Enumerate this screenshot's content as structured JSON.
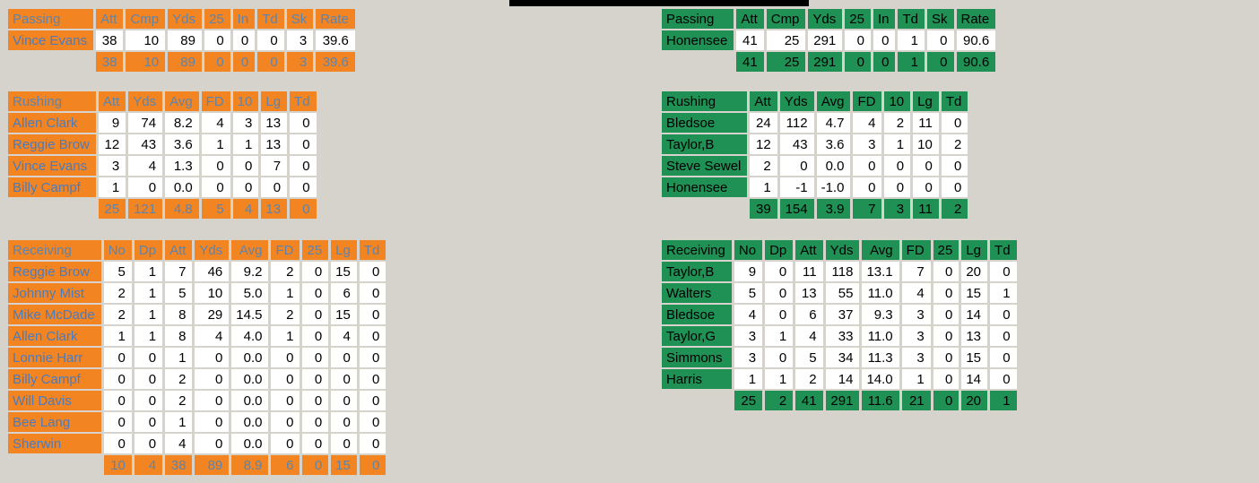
{
  "decor": {
    "top_bar_color": "#000000",
    "page_background": "#D6D3CC"
  },
  "left": {
    "theme": {
      "accent": "#F28422",
      "header_text": "#5E84AD",
      "name_text": "#4A7CBF",
      "total_text": "#5E84AD"
    },
    "passing": {
      "title": "Passing",
      "columns": [
        "Att",
        "Cmp",
        "Yds",
        "25",
        "In",
        "Td",
        "Sk",
        "Rate"
      ],
      "rows": [
        {
          "name": "Vince Evans",
          "values": [
            "38",
            "10",
            "89",
            "0",
            "0",
            "0",
            "3",
            "39.6"
          ]
        }
      ],
      "totals": [
        "38",
        "10",
        "89",
        "0",
        "0",
        "0",
        "3",
        "39.6"
      ]
    },
    "rushing": {
      "title": "Rushing",
      "columns": [
        "Att",
        "Yds",
        "Avg",
        "FD",
        "10",
        "Lg",
        "Td"
      ],
      "rows": [
        {
          "name": "Allen Clark",
          "values": [
            "9",
            "74",
            "8.2",
            "4",
            "3",
            "13",
            "0"
          ]
        },
        {
          "name": "Reggie Brow",
          "values": [
            "12",
            "43",
            "3.6",
            "1",
            "1",
            "13",
            "0"
          ]
        },
        {
          "name": "Vince Evans",
          "values": [
            "3",
            "4",
            "1.3",
            "0",
            "0",
            "7",
            "0"
          ]
        },
        {
          "name": "Billy Campf",
          "values": [
            "1",
            "0",
            "0.0",
            "0",
            "0",
            "0",
            "0"
          ]
        }
      ],
      "totals": [
        "25",
        "121",
        "4.8",
        "5",
        "4",
        "13",
        "0"
      ]
    },
    "receiving": {
      "title": "Receiving",
      "columns": [
        "No",
        "Dp",
        "Att",
        "Yds",
        "Avg",
        "FD",
        "25",
        "Lg",
        "Td"
      ],
      "rows": [
        {
          "name": "Reggie Brow",
          "values": [
            "5",
            "1",
            "7",
            "46",
            "9.2",
            "2",
            "0",
            "15",
            "0"
          ]
        },
        {
          "name": "Johnny Mist",
          "values": [
            "2",
            "1",
            "5",
            "10",
            "5.0",
            "1",
            "0",
            "6",
            "0"
          ]
        },
        {
          "name": "Mike McDade",
          "values": [
            "2",
            "1",
            "8",
            "29",
            "14.5",
            "2",
            "0",
            "15",
            "0"
          ]
        },
        {
          "name": "Allen Clark",
          "values": [
            "1",
            "1",
            "8",
            "4",
            "4.0",
            "1",
            "0",
            "4",
            "0"
          ]
        },
        {
          "name": "Lonnie Harr",
          "values": [
            "0",
            "0",
            "1",
            "0",
            "0.0",
            "0",
            "0",
            "0",
            "0"
          ]
        },
        {
          "name": "Billy Campf",
          "values": [
            "0",
            "0",
            "2",
            "0",
            "0.0",
            "0",
            "0",
            "0",
            "0"
          ]
        },
        {
          "name": "Will Davis",
          "values": [
            "0",
            "0",
            "2",
            "0",
            "0.0",
            "0",
            "0",
            "0",
            "0"
          ]
        },
        {
          "name": "Bee Lang",
          "values": [
            "0",
            "0",
            "1",
            "0",
            "0.0",
            "0",
            "0",
            "0",
            "0"
          ]
        },
        {
          "name": "Sherwin",
          "values": [
            "0",
            "0",
            "4",
            "0",
            "0.0",
            "0",
            "0",
            "0",
            "0"
          ]
        }
      ],
      "totals": [
        "10",
        "4",
        "38",
        "89",
        "8.9",
        "6",
        "0",
        "15",
        "0"
      ]
    }
  },
  "right": {
    "theme": {
      "accent": "#1F9154",
      "header_text": "#000000",
      "name_text": "#000000",
      "total_text": "#000000"
    },
    "passing": {
      "title": "Passing",
      "columns": [
        "Att",
        "Cmp",
        "Yds",
        "25",
        "In",
        "Td",
        "Sk",
        "Rate"
      ],
      "rows": [
        {
          "name": "Honensee",
          "values": [
            "41",
            "25",
            "291",
            "0",
            "0",
            "1",
            "0",
            "90.6"
          ]
        }
      ],
      "totals": [
        "41",
        "25",
        "291",
        "0",
        "0",
        "1",
        "0",
        "90.6"
      ]
    },
    "rushing": {
      "title": "Rushing",
      "columns": [
        "Att",
        "Yds",
        "Avg",
        "FD",
        "10",
        "Lg",
        "Td"
      ],
      "rows": [
        {
          "name": "Bledsoe",
          "values": [
            "24",
            "112",
            "4.7",
            "4",
            "2",
            "11",
            "0"
          ]
        },
        {
          "name": "Taylor,B",
          "values": [
            "12",
            "43",
            "3.6",
            "3",
            "1",
            "10",
            "2"
          ]
        },
        {
          "name": "Steve Sewel",
          "values": [
            "2",
            "0",
            "0.0",
            "0",
            "0",
            "0",
            "0"
          ]
        },
        {
          "name": "Honensee",
          "values": [
            "1",
            "-1",
            "-1.0",
            "0",
            "0",
            "0",
            "0"
          ]
        }
      ],
      "totals": [
        "39",
        "154",
        "3.9",
        "7",
        "3",
        "11",
        "2"
      ]
    },
    "receiving": {
      "title": "Receiving",
      "columns": [
        "No",
        "Dp",
        "Att",
        "Yds",
        "Avg",
        "FD",
        "25",
        "Lg",
        "Td"
      ],
      "rows": [
        {
          "name": "Taylor,B",
          "values": [
            "9",
            "0",
            "11",
            "118",
            "13.1",
            "7",
            "0",
            "20",
            "0"
          ]
        },
        {
          "name": "Walters",
          "values": [
            "5",
            "0",
            "13",
            "55",
            "11.0",
            "4",
            "0",
            "15",
            "1"
          ]
        },
        {
          "name": "Bledsoe",
          "values": [
            "4",
            "0",
            "6",
            "37",
            "9.3",
            "3",
            "0",
            "14",
            "0"
          ]
        },
        {
          "name": "Taylor,G",
          "values": [
            "3",
            "1",
            "4",
            "33",
            "11.0",
            "3",
            "0",
            "13",
            "0"
          ]
        },
        {
          "name": "Simmons",
          "values": [
            "3",
            "0",
            "5",
            "34",
            "11.3",
            "3",
            "0",
            "15",
            "0"
          ]
        },
        {
          "name": "Harris",
          "values": [
            "1",
            "1",
            "2",
            "14",
            "14.0",
            "1",
            "0",
            "14",
            "0"
          ]
        }
      ],
      "totals": [
        "25",
        "2",
        "41",
        "291",
        "11.6",
        "21",
        "0",
        "20",
        "1"
      ]
    }
  }
}
